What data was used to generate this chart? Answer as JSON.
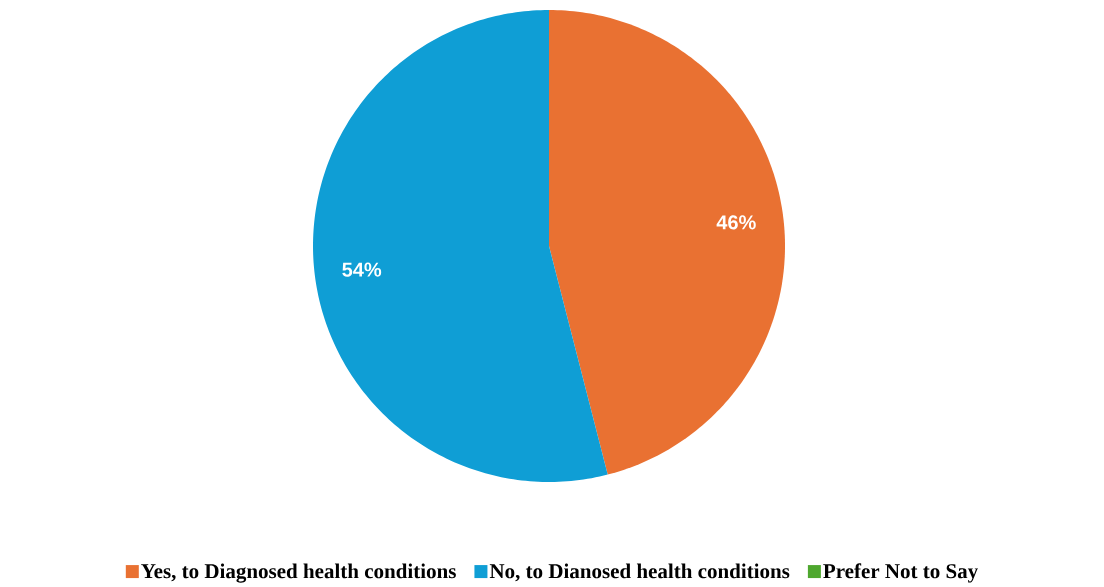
{
  "chart_data": {
    "type": "pie",
    "categories": [
      "Yes, to Diagnosed health conditions",
      "No, to Dianosed health conditions",
      "Prefer Not to Say"
    ],
    "values": [
      46,
      54,
      0
    ],
    "colors": [
      "#e97132",
      "#0f9ed5",
      "#4ea72e"
    ],
    "value_labels": [
      "46%",
      "54%",
      null
    ],
    "legend": "bottom"
  }
}
